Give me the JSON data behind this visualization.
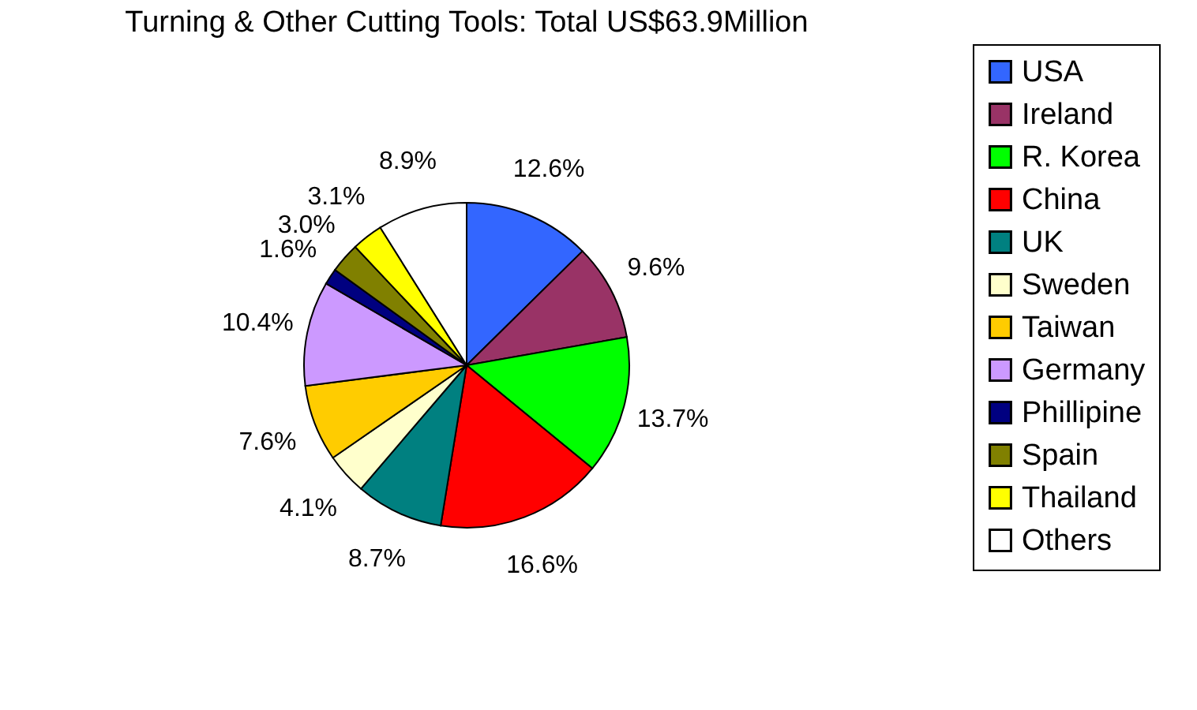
{
  "chart_data": {
    "type": "pie",
    "title": "Turning & Other Cutting Tools: Total US$63.9Million",
    "categories": [
      "USA",
      "Ireland",
      "R. Korea",
      "China",
      "UK",
      "Sweden",
      "Taiwan",
      "Germany",
      "Phillipine",
      "Spain",
      "Thailand",
      "Others"
    ],
    "values": [
      12.6,
      9.6,
      13.7,
      16.6,
      8.7,
      4.1,
      7.6,
      10.4,
      1.6,
      3.0,
      3.1,
      8.9
    ],
    "value_labels": [
      "12.6%",
      "9.6%",
      "13.7%",
      "16.6%",
      "8.7%",
      "4.1%",
      "7.6%",
      "10.4%",
      "1.6%",
      "3.0%",
      "3.1%",
      "8.9%"
    ],
    "colors": [
      "#3366ff",
      "#993366",
      "#00ff00",
      "#ff0000",
      "#008080",
      "#ffffcc",
      "#ffcc00",
      "#cc99ff",
      "#000080",
      "#808000",
      "#ffff00",
      "#ffffff"
    ],
    "legend": "right"
  }
}
